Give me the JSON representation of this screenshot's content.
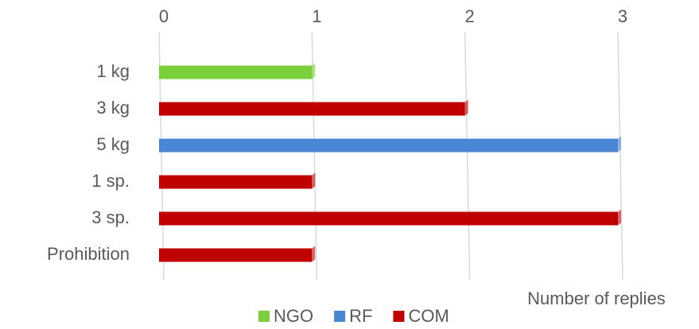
{
  "chart_data": {
    "type": "bar",
    "orientation": "horizontal",
    "categories": [
      "1 kg",
      "3 kg",
      "5 kg",
      "1 sp.",
      "3 sp.",
      "Prohibition"
    ],
    "series": [
      {
        "name": "NGO",
        "color": "#7ccf3c",
        "values": [
          1,
          null,
          null,
          null,
          null,
          null
        ]
      },
      {
        "name": "RF",
        "color": "#4a86d6",
        "values": [
          null,
          null,
          3,
          null,
          null,
          null
        ]
      },
      {
        "name": "COM",
        "color": "#c00000",
        "values": [
          null,
          2,
          null,
          1,
          3,
          1
        ]
      }
    ],
    "xlabel": "Number of replies",
    "xlim": [
      0,
      3
    ],
    "xticks": [
      0,
      1,
      2,
      3
    ],
    "grid": true,
    "legend": "bottom"
  }
}
